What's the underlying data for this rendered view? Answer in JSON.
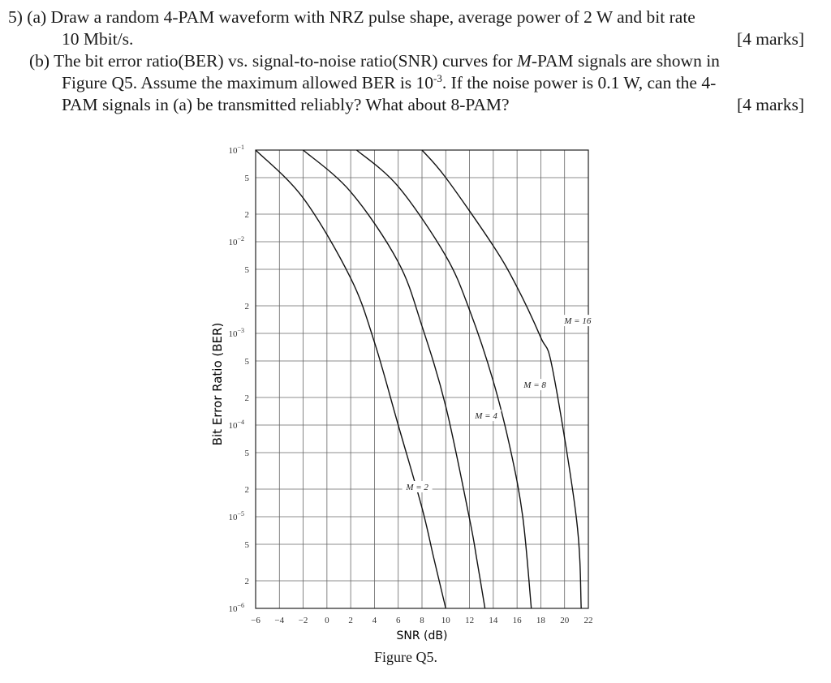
{
  "question": {
    "number": "5)",
    "part_a": {
      "label": "(a)",
      "line1": "Draw a random 4-PAM waveform with NRZ pulse shape, average power of 2 W and bit rate",
      "line2": "10 Mbit/s.",
      "marks": "[4 marks]"
    },
    "part_b": {
      "label": "(b)",
      "line1": "The bit error ratio(BER) vs. signal-to-noise ratio(SNR) curves for M-PAM signals are shown in",
      "line2_pre": "Figure Q5. Assume the maximum allowed BER is 10",
      "line2_sup": "-3",
      "line2_post": ". If the noise power is 0.1 W, can the 4-",
      "line3": "PAM signals in (a) be transmitted reliably? What about 8-PAM?",
      "marks": "[4 marks]"
    }
  },
  "figure_caption": "Figure Q5.",
  "chart_data": {
    "type": "line",
    "title": "",
    "xlabel": "SNR (dB)",
    "ylabel": "Bit Error Ratio (BER)",
    "xlim": [
      -6,
      22
    ],
    "ylim": [
      1e-06,
      0.1
    ],
    "yscale": "log",
    "grid": true,
    "x_ticks": [
      "−6",
      "−4",
      "−2",
      "0",
      "2",
      "4",
      "6",
      "8",
      "10",
      "12",
      "14",
      "16",
      "18",
      "20",
      "22"
    ],
    "y_ticks": [
      {
        "label": "10",
        "exp": "−1"
      },
      {
        "label": "5"
      },
      {
        "label": "2"
      },
      {
        "label": "10",
        "exp": "−2"
      },
      {
        "label": "5"
      },
      {
        "label": "2"
      },
      {
        "label": "10",
        "exp": "−3"
      },
      {
        "label": "5"
      },
      {
        "label": "2"
      },
      {
        "label": "10",
        "exp": "−4"
      },
      {
        "label": "5"
      },
      {
        "label": "2"
      },
      {
        "label": "10",
        "exp": "−5"
      },
      {
        "label": "5"
      },
      {
        "label": "2"
      },
      {
        "label": "10",
        "exp": "−6"
      }
    ],
    "series": [
      {
        "name": "M = 2",
        "points": [
          [
            -6,
            0.1
          ],
          [
            -2,
            0.03
          ],
          [
            2,
            0.004
          ],
          [
            4,
            0.0008
          ],
          [
            6,
            0.0001
          ],
          [
            8,
            1.25e-05
          ],
          [
            9,
            3.5e-06
          ],
          [
            10,
            1e-06
          ]
        ],
        "label_at": [
          7.6,
          2e-05
        ]
      },
      {
        "name": "M = 4",
        "points": [
          [
            -2,
            0.1
          ],
          [
            2,
            0.035
          ],
          [
            6,
            0.006
          ],
          [
            8,
            0.0012
          ],
          [
            10,
            0.00016
          ],
          [
            12,
            9.5e-06
          ],
          [
            12.6,
            3.5e-06
          ],
          [
            13.3,
            1e-06
          ]
        ],
        "label_at": [
          13.4,
          0.00012
        ]
      },
      {
        "name": "M = 8",
        "points": [
          [
            2.5,
            0.1
          ],
          [
            6,
            0.04
          ],
          [
            10,
            0.007
          ],
          [
            12,
            0.0018
          ],
          [
            14,
            0.0003
          ],
          [
            15.5,
            5e-05
          ],
          [
            16.5,
            9.5e-06
          ],
          [
            17.2,
            1e-06
          ]
        ],
        "label_at": [
          17.5,
          0.00026
        ]
      },
      {
        "name": "M = 16",
        "points": [
          [
            8,
            0.1
          ],
          [
            10,
            0.05
          ],
          [
            14,
            0.009
          ],
          [
            16,
            0.0032
          ],
          [
            18,
            0.0009
          ],
          [
            19,
            0.0004
          ],
          [
            21,
            9.5e-06
          ],
          [
            21.4,
            1e-06
          ]
        ],
        "label_at": [
          21.1,
          0.0013
        ]
      }
    ]
  }
}
